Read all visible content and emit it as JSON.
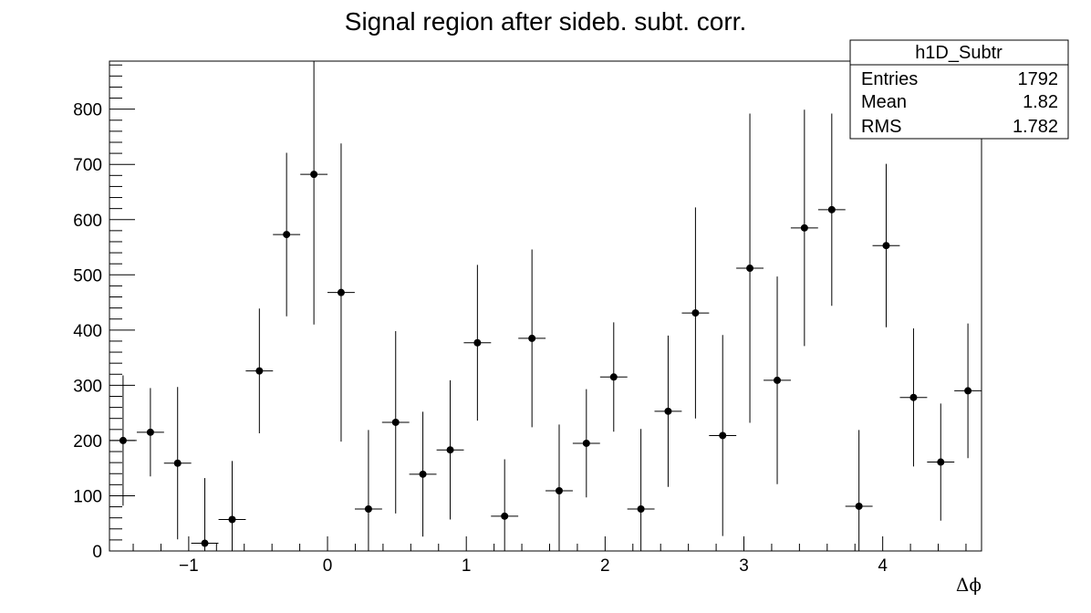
{
  "chart_data": {
    "type": "scatter",
    "title": "Signal region after sideb. subt. corr.",
    "xlabel": "Δϕ",
    "ylabel": "",
    "xlim": [
      -1.571,
      4.712
    ],
    "ylim": [
      0,
      887
    ],
    "x_ticks": [
      -1,
      0,
      1,
      2,
      3,
      4
    ],
    "x_tick_labels": [
      "−1",
      "0",
      "1",
      "2",
      "3",
      "4"
    ],
    "y_ticks": [
      0,
      100,
      200,
      300,
      400,
      500,
      600,
      700,
      800
    ],
    "y_tick_labels": [
      "0",
      "100",
      "200",
      "300",
      "400",
      "500",
      "600",
      "700",
      "800"
    ],
    "bin_width": 0.19635,
    "points": [
      {
        "x": -1.473,
        "y": 200,
        "err": 118
      },
      {
        "x": -1.276,
        "y": 215,
        "err": 80
      },
      {
        "x": -1.08,
        "y": 159,
        "err": 138
      },
      {
        "x": -0.884,
        "y": 14,
        "err": 118
      },
      {
        "x": -0.687,
        "y": 57,
        "err": 106
      },
      {
        "x": -0.491,
        "y": 326,
        "err": 113
      },
      {
        "x": -0.295,
        "y": 573,
        "err": 148
      },
      {
        "x": -0.098,
        "y": 682,
        "err": 272
      },
      {
        "x": 0.098,
        "y": 468,
        "err": 270
      },
      {
        "x": 0.295,
        "y": 76,
        "err": 143
      },
      {
        "x": 0.491,
        "y": 233,
        "err": 165
      },
      {
        "x": 0.687,
        "y": 139,
        "err": 113
      },
      {
        "x": 0.884,
        "y": 183,
        "err": 126
      },
      {
        "x": 1.08,
        "y": 377,
        "err": 141
      },
      {
        "x": 1.276,
        "y": 63,
        "err": 103
      },
      {
        "x": 1.473,
        "y": 385,
        "err": 161
      },
      {
        "x": 1.669,
        "y": 109,
        "err": 120
      },
      {
        "x": 1.865,
        "y": 195,
        "err": 98
      },
      {
        "x": 2.062,
        "y": 315,
        "err": 99
      },
      {
        "x": 2.258,
        "y": 76,
        "err": 145
      },
      {
        "x": 2.454,
        "y": 253,
        "err": 137
      },
      {
        "x": 2.651,
        "y": 431,
        "err": 191
      },
      {
        "x": 2.847,
        "y": 209,
        "err": 182
      },
      {
        "x": 3.043,
        "y": 512,
        "err": 280
      },
      {
        "x": 3.24,
        "y": 309,
        "err": 188
      },
      {
        "x": 3.436,
        "y": 585,
        "err": 214
      },
      {
        "x": 3.633,
        "y": 618,
        "err": 174
      },
      {
        "x": 3.829,
        "y": 81,
        "err": 138
      },
      {
        "x": 4.025,
        "y": 553,
        "err": 148
      },
      {
        "x": 4.222,
        "y": 278,
        "err": 125
      },
      {
        "x": 4.418,
        "y": 161,
        "err": 106
      },
      {
        "x": 4.614,
        "y": 290,
        "err": 122
      }
    ],
    "stats_box": {
      "name": "h1D_Subtr",
      "rows": [
        {
          "label": "Entries",
          "value": "1792"
        },
        {
          "label": "Mean",
          "value": "1.82"
        },
        {
          "label": "RMS",
          "value": "1.782"
        }
      ]
    },
    "grid": false,
    "legend": "top-right",
    "colors": {
      "marker": "#000000",
      "frame": "#000000",
      "background": "#ffffff"
    }
  }
}
